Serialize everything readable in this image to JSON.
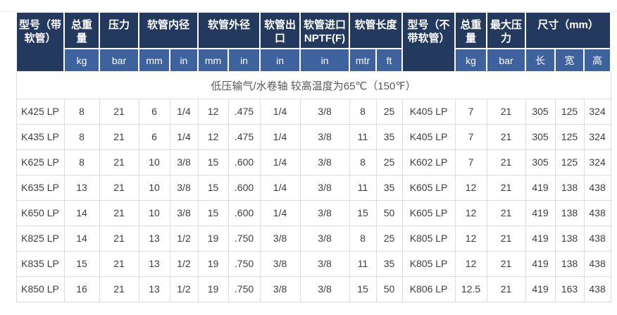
{
  "colors": {
    "header_dark": "#24395E",
    "header_blue": "#3D629D",
    "border": "#DCDCDC",
    "body_text": "#3D3D3D",
    "banner_text": "#595959"
  },
  "table": {
    "top_header": {
      "model_with_hose": "型号（带软管）",
      "total_weight": "总重量",
      "pressure": "压力",
      "hose_inner_diameter": "软管内径",
      "hose_outer_diameter": "软管外径",
      "hose_outlet": "软管出口",
      "hose_inlet_line1": "软管进口",
      "hose_inlet_line2": "NPTF(F)",
      "hose_length": "软管长度",
      "model_without_hose": "型号（不带软管）",
      "total_weight2": "总重量",
      "max_pressure": "最大压力",
      "dimensions": "尺寸（mm）"
    },
    "units": [
      "kg",
      "bar",
      "mm",
      "in",
      "mm",
      "in",
      "in",
      "in",
      "mtr",
      "ft",
      "kg",
      "bar",
      "长",
      "宽",
      "高"
    ],
    "banner": "低压输气/水卷轴 较高温度为65℃（150℉）",
    "rows": [
      [
        "K425 LP",
        "8",
        "21",
        "6",
        "1/4",
        "12",
        ".475",
        "1/4",
        "3/8",
        "8",
        "25",
        "K405 LP",
        "7",
        "21",
        "305",
        "125",
        "324"
      ],
      [
        "K435 LP",
        "8",
        "21",
        "6",
        "1/4",
        "12",
        ".475",
        "1/4",
        "3/8",
        "11",
        "35",
        "K405 LP",
        "7",
        "21",
        "305",
        "125",
        "324"
      ],
      [
        "K625 LP",
        "8",
        "21",
        "10",
        "3/8",
        "15",
        ".600",
        "1/4",
        "3/8",
        "8",
        "25",
        "K602 LP",
        "7",
        "21",
        "305",
        "125",
        "324"
      ],
      [
        "K635 LP",
        "13",
        "21",
        "10",
        "3/8",
        "15",
        ".600",
        "1/4",
        "3/8",
        "11",
        "35",
        "K605 LP",
        "12",
        "21",
        "419",
        "138",
        "438"
      ],
      [
        "K650 LP",
        "14",
        "21",
        "10",
        "3/8",
        "15",
        ".600",
        "1/4",
        "3/8",
        "15",
        "50",
        "K605 LP",
        "12",
        "21",
        "419",
        "138",
        "438"
      ],
      [
        "K825 LP",
        "14",
        "21",
        "13",
        "1/2",
        "19",
        ".750",
        "3/8",
        "3/8",
        "8",
        "25",
        "K805 LP",
        "12",
        "21",
        "419",
        "138",
        "438"
      ],
      [
        "K835 LP",
        "15",
        "21",
        "13",
        "1/2",
        "19",
        ".750",
        "3/8",
        "3/8",
        "11",
        "35",
        "K805 LP",
        "12",
        "21",
        "419",
        "138",
        "438"
      ],
      [
        "K850 LP",
        "16",
        "21",
        "13",
        "1/2",
        "19",
        ".750",
        "3/8",
        "3/8",
        "15",
        "50",
        "K806 LP",
        "12.5",
        "21",
        "419",
        "163",
        "438"
      ]
    ]
  }
}
